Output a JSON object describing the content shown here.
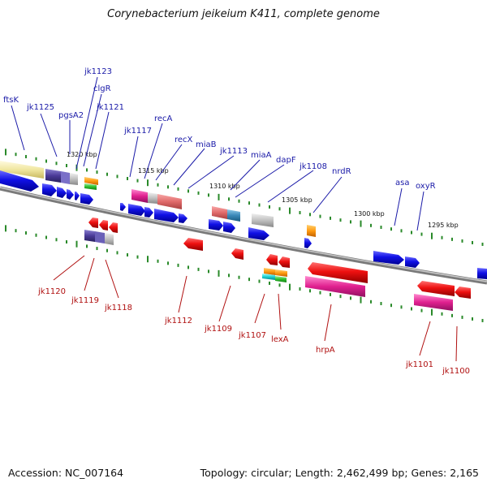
{
  "title": "Corynebacterium jeikeium K411, complete genome",
  "accession": "Accession: NC_007164",
  "summary": "Topology: circular; Length: 2,462,499 bp; Genes: 2,165",
  "scale_labels": [
    "1320 kbp",
    "1315 kbp",
    "1310 kbp",
    "1305 kbp",
    "1300 kbp",
    "1295 kbp"
  ],
  "top_labels": [
    "ftsK",
    "jk1125",
    "pgsA2",
    "jk1123",
    "clgR",
    "jk1121",
    "jk1117",
    "recA",
    "recX",
    "miaB",
    "jk1113",
    "miaA",
    "dapF",
    "jk1108",
    "nrdR",
    "asa",
    "oxyR"
  ],
  "bottom_labels": [
    "jk1120",
    "jk1119",
    "jk1118",
    "jk1112",
    "jk1109",
    "jk1107",
    "lexA",
    "hrpA",
    "jk1101",
    "jk1100"
  ],
  "colors": {
    "forward_gene": "#1010e0",
    "reverse_gene": "#e01010",
    "backbone": "#8a8a8a",
    "tick": "#2a8a2a",
    "top_label": "#1a1aa8",
    "bottom_label": "#b01010"
  }
}
